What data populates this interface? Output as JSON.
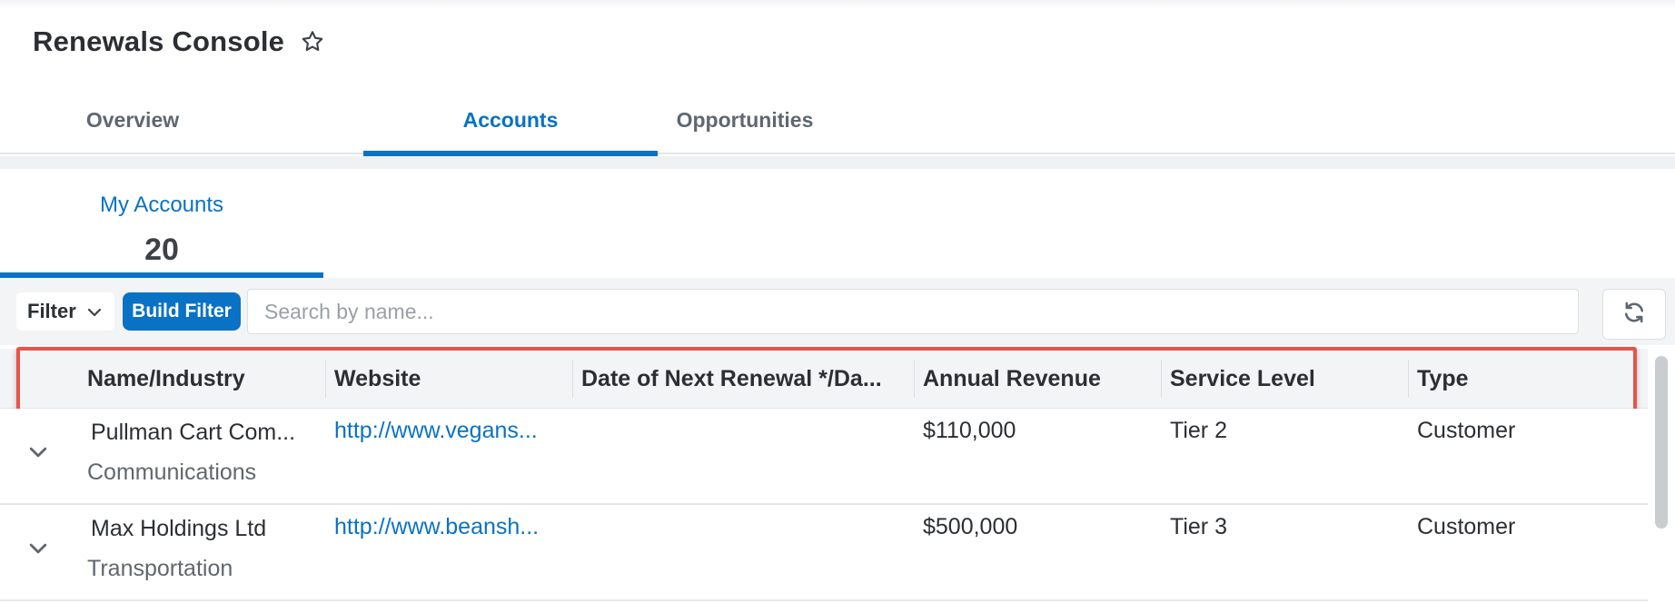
{
  "header": {
    "title": "Renewals Console",
    "star_icon": "star-outline-icon"
  },
  "tabs": [
    {
      "label": "Overview",
      "active": false
    },
    {
      "label": "Accounts",
      "active": true
    },
    {
      "label": "Opportunities",
      "active": false
    }
  ],
  "subtab": {
    "label": "My Accounts",
    "count": "20"
  },
  "toolbar": {
    "filter_label": "Filter",
    "build_filter_label": "Build Filter",
    "search_placeholder": "Search by name...",
    "refresh_icon": "refresh-icon"
  },
  "table": {
    "columns": [
      "Name/Industry",
      "Website",
      "Date of Next Renewal */Da...",
      "Annual Revenue",
      "Service Level",
      "Type"
    ],
    "rows": [
      {
        "name": "Pullman Cart Com...",
        "industry": "Communications",
        "website": "http://www.vegans...",
        "renewal": "",
        "revenue": "$110,000",
        "service": "Tier 2",
        "type": "Customer"
      },
      {
        "name": "Max Holdings Ltd",
        "industry": "Transportation",
        "website": "http://www.beansh...",
        "renewal": "",
        "revenue": "$500,000",
        "service": "Tier 3",
        "type": "Customer"
      }
    ]
  },
  "colors": {
    "accent": "#0a72c4",
    "highlight": "#e8534a"
  }
}
